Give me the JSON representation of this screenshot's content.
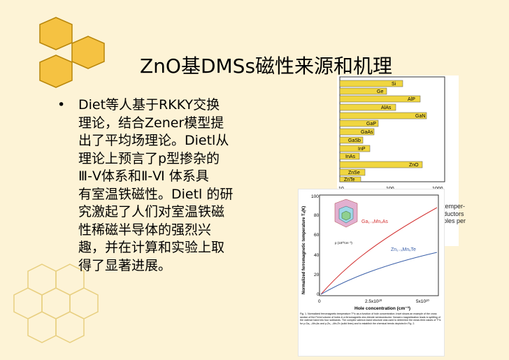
{
  "slide": {
    "title": "ZnO基DMSs磁性来源和机理",
    "bullet_marker": "•",
    "bullet_text": "Diet等人基于RKKY交换\n理论，结合Zener模型提\n出了平均场理论。Dietl从\n理论上预言了p型掺杂的\nⅢ-Ⅴ体系和Ⅱ-Ⅵ 体系具\n有室温铁磁性。Dietl 的研\n究激起了人们对室温铁磁\n性稀磁半导体的强烈兴\n趣，并在计算和实验上取\n得了显著进展。"
  },
  "colors": {
    "background": "#fdf3d6",
    "hex_fill": "#f5c242",
    "hex_stroke": "#b8860b",
    "hex_outline": "#e8cf80",
    "bar_fill": "#f0d640",
    "red_curve": "#d33333",
    "blue_curve": "#3a5fa8"
  },
  "figure_top": {
    "labels": [
      "Si",
      "Ge",
      "AlP",
      "AlAs",
      "GaN",
      "GaP",
      "GaAs",
      "GaSb",
      "InP",
      "InAs",
      "ZnO",
      "ZnSe",
      "ZnTe"
    ],
    "axis_ticks": [
      "10",
      "100",
      "1000"
    ],
    "cut_text": "temper-\nductors\nples per"
  },
  "figure_bottom": {
    "ylabel": "Normalized ferromagnetic temperature Tₑ(K)",
    "xlabel": "Hole concentration (cm⁻³)",
    "y_ticks": [
      "100",
      "80",
      "60",
      "40",
      "20",
      "0"
    ],
    "x_ticks": [
      "0",
      "2.5x10²⁰",
      "5x10²⁰"
    ],
    "label_red": "Ga₁₋ₓMnₓAs",
    "label_blue": "Zn₁₋ₓMnₓTe",
    "inset_label": "p (10²⁰cm⁻³)",
    "caption": "Fig. 1. Normalized ferromagnetic temperature Tᶜ/x as a function of hole concentration. Inset shows an example of the cross section of the Fermi volume of holes in a ferromagnetic zinc-blende semiconductor. Nonzero magnetization leads to splitting of the valence band into four subbands. The complex valence-band structure was used to determine the mean-field values of Tᶜ/x for p-Ga₁₋ₓMnₓAs and p-Zn₁₋ₓMnₓTe (solid lines) and to establish the chemical trends depicted in Fig. 2."
  }
}
